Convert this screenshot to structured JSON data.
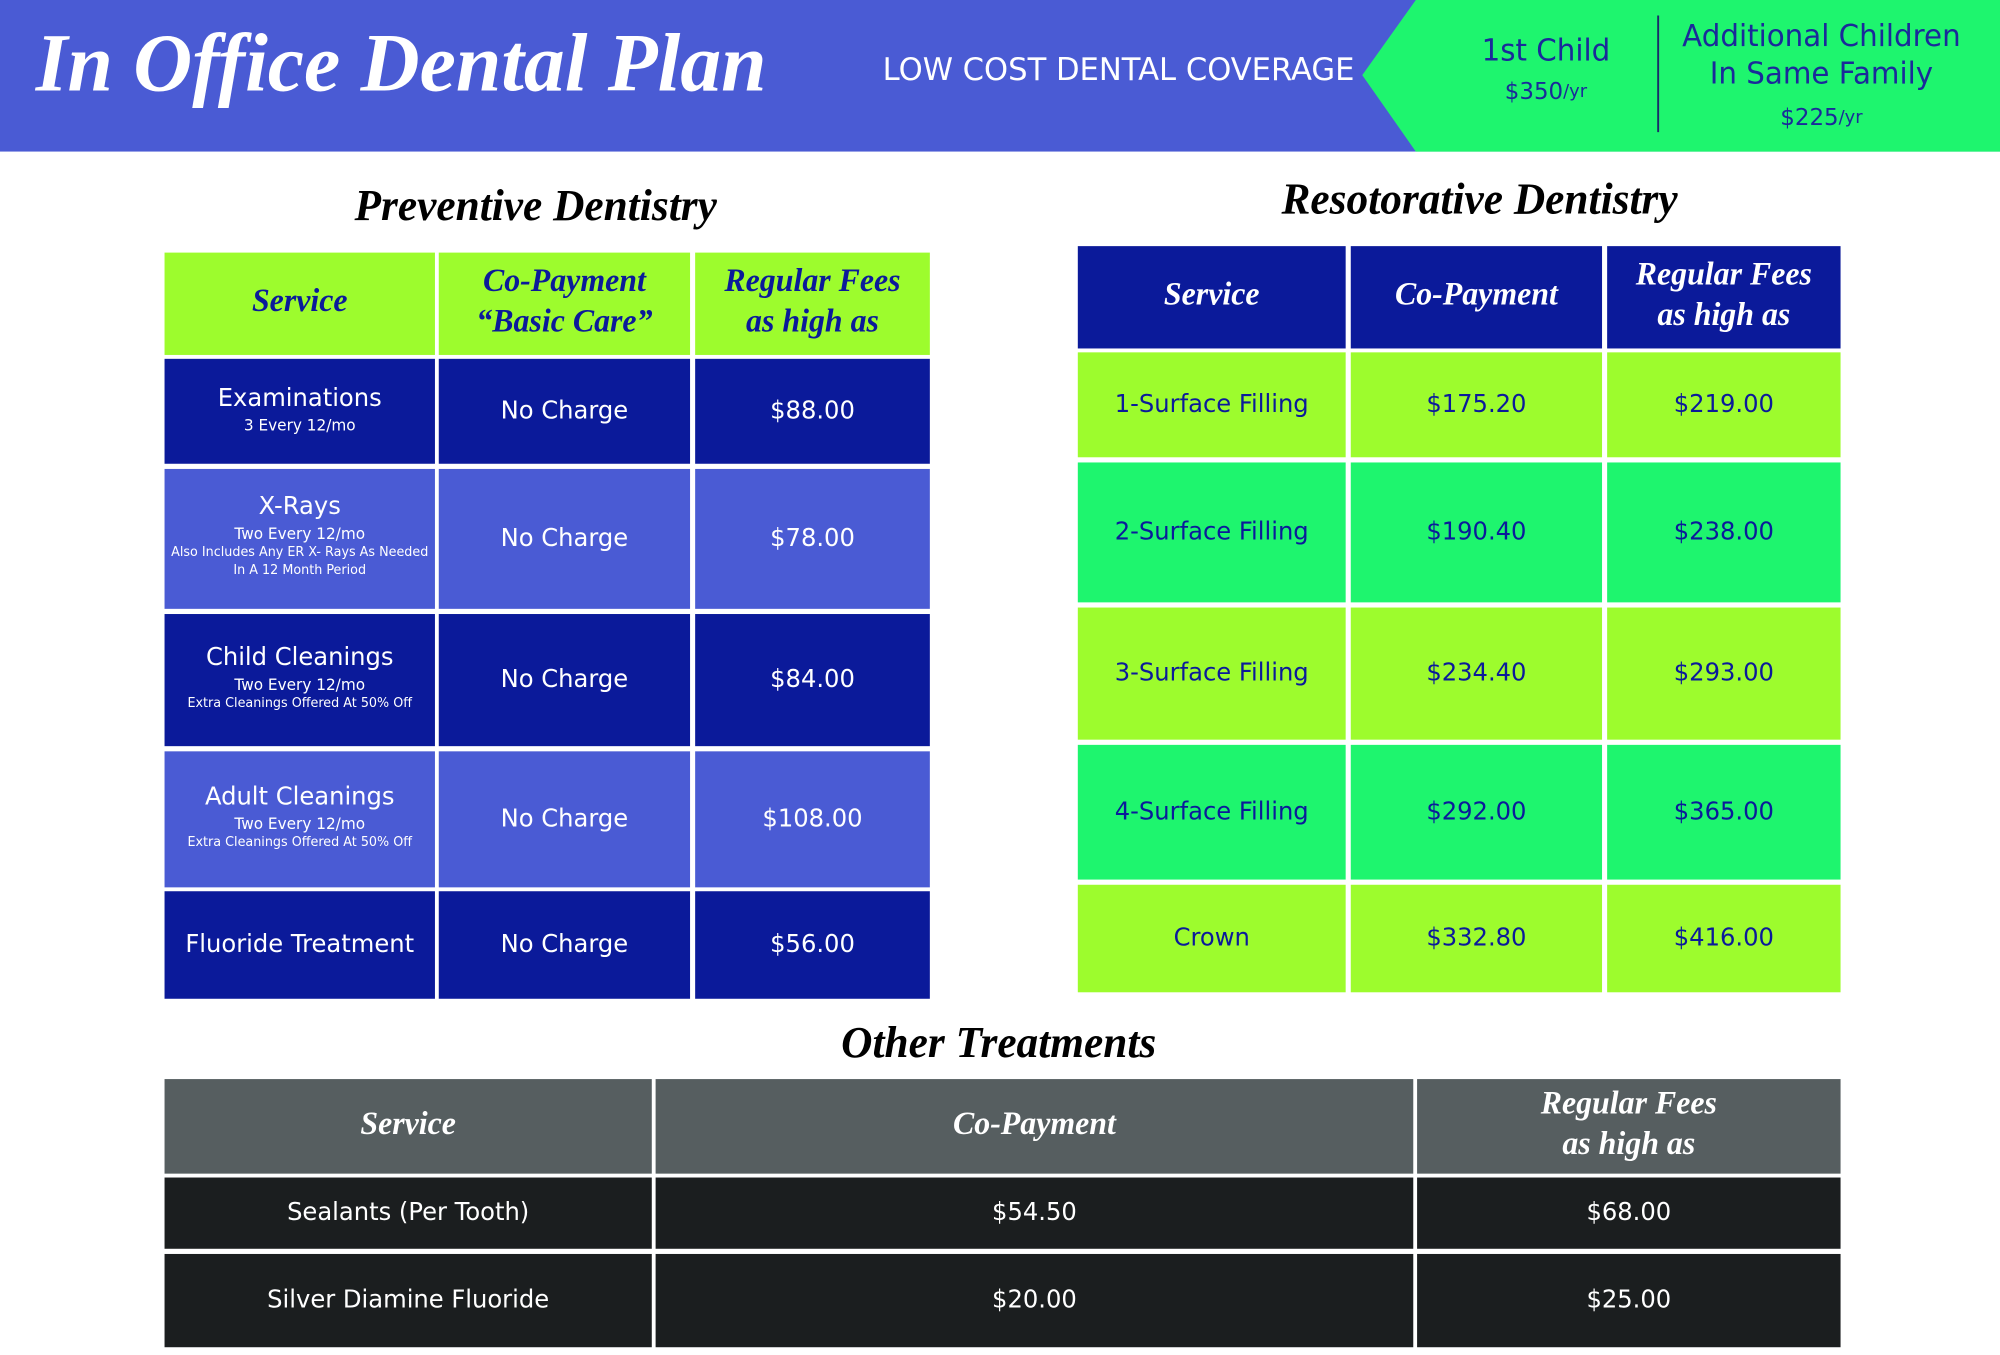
{
  "header": {
    "title": "In Office Dental Plan",
    "subtitle": "LOW COST DENTAL COVERAGE",
    "plans": [
      {
        "label": [
          "1st Child"
        ],
        "price": "$350",
        "unit": "/yr"
      },
      {
        "label": [
          "Additional Children",
          "In Same Family"
        ],
        "price": "$225",
        "unit": "/yr"
      }
    ]
  },
  "preventive": {
    "title": "Preventive Dentistry",
    "headers": [
      [
        "Service"
      ],
      [
        "Co-Payment",
        "“Basic Care”"
      ],
      [
        "Regular Fees",
        "as high as"
      ]
    ],
    "rows": [
      {
        "service": "Examinations",
        "notes": [
          "3 Every 12/mo"
        ],
        "copay": "No Charge",
        "fee": "$88.00"
      },
      {
        "service": "X-Rays",
        "notes": [
          "Two Every 12/mo",
          "Also Includes Any ER X- Rays As Needed",
          "In A 12 Month Period"
        ],
        "copay": "No Charge",
        "fee": "$78.00"
      },
      {
        "service": "Child Cleanings",
        "notes": [
          "Two Every 12/mo",
          "Extra Cleanings Offered At 50% Off"
        ],
        "copay": "No Charge",
        "fee": "$84.00"
      },
      {
        "service": "Adult Cleanings",
        "notes": [
          "Two Every 12/mo",
          "Extra Cleanings Offered At 50% Off"
        ],
        "copay": "No Charge",
        "fee": "$108.00"
      },
      {
        "service": "Fluoride Treatment",
        "copay": "No Charge",
        "fee": "$56.00"
      }
    ]
  },
  "restorative": {
    "title": "Resotorative Dentistry",
    "headers": [
      [
        "Service"
      ],
      [
        "Co-Payment"
      ],
      [
        "Regular Fees",
        "as high as"
      ]
    ],
    "rows": [
      {
        "service": "1-Surface Filling",
        "copay": "$175.20",
        "fee": "$219.00"
      },
      {
        "service": "2-Surface Filling",
        "copay": "$190.40",
        "fee": "$238.00"
      },
      {
        "service": "3-Surface Filling",
        "copay": "$234.40",
        "fee": "$293.00"
      },
      {
        "service": "4-Surface Filling",
        "copay": "$292.00",
        "fee": "$365.00"
      },
      {
        "service": "Crown",
        "copay": "$332.80",
        "fee": "$416.00"
      }
    ]
  },
  "other": {
    "title": "Other Treatments",
    "headers": [
      [
        "Service"
      ],
      [
        "Co-Payment"
      ],
      [
        "Regular Fees",
        "as high as"
      ]
    ],
    "rows": [
      {
        "service": "Sealants (Per Tooth)",
        "copay": "$54.50",
        "fee": "$68.00"
      },
      {
        "service": "Silver Diamine Fluoride",
        "copay": "$20.00",
        "fee": "$25.00"
      }
    ]
  }
}
